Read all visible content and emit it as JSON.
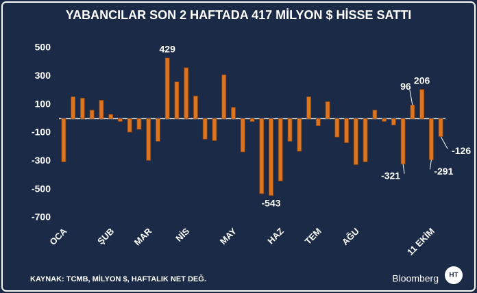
{
  "chart_data": {
    "type": "bar",
    "title": "YABANCILAR SON 2 HAFTADA 417 MİLYON $ HİSSE SATTI",
    "categories": [
      "OCA",
      null,
      null,
      null,
      null,
      "ŞUB",
      null,
      null,
      null,
      "MAR",
      null,
      null,
      null,
      "NİS",
      null,
      null,
      null,
      null,
      "MAY",
      null,
      null,
      null,
      null,
      "HAZ",
      null,
      null,
      null,
      "TEM",
      null,
      null,
      null,
      "AĞU",
      null,
      null,
      null,
      null,
      null,
      null,
      null,
      "11 EKİM",
      null
    ],
    "values": [
      -305,
      155,
      145,
      60,
      130,
      30,
      -20,
      -95,
      -75,
      -295,
      -160,
      429,
      260,
      360,
      160,
      -145,
      -155,
      310,
      80,
      -235,
      -20,
      -530,
      -543,
      -440,
      -160,
      -230,
      155,
      -50,
      120,
      -130,
      -170,
      -325,
      -305,
      60,
      -20,
      -45,
      -321,
      96,
      206,
      -291,
      -126
    ],
    "value_labels": [
      null,
      null,
      null,
      null,
      null,
      null,
      null,
      null,
      null,
      null,
      null,
      "429",
      null,
      null,
      null,
      null,
      null,
      null,
      null,
      null,
      null,
      null,
      "-543",
      null,
      null,
      null,
      null,
      null,
      null,
      null,
      null,
      null,
      null,
      null,
      null,
      null,
      "-321",
      "96",
      "206",
      "-291",
      "-126"
    ],
    "color": "#dd7420",
    "ylim": [
      -700,
      500
    ],
    "yticks": [
      -700,
      -500,
      -300,
      -100,
      100,
      300,
      500
    ],
    "grid": false
  },
  "footer": {
    "source": "KAYNAK: TCMB, MİLYON $, HAFTALIK NET DEĞ.",
    "brand": "Bloomberg",
    "logo": "HT"
  }
}
